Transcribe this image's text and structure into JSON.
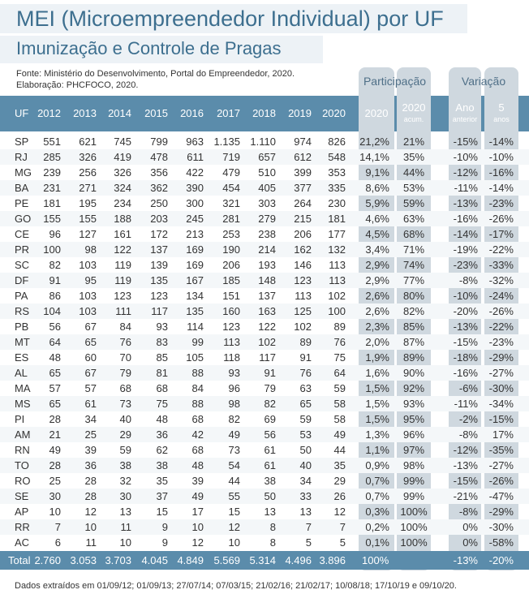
{
  "title": "MEI (Microempreendedor Individual) por UF",
  "subtitle": "Imunização e Controle de Pragas",
  "source_line1": "Fonte: Ministério do Desenvolvimento, Portal do Empreendedor, 2020.",
  "source_line2": "Elaboração: PHCFOCO, 2020.",
  "group_participacao": "Participação",
  "group_variacao": "Variação",
  "headers": {
    "uf": "UF",
    "years": [
      "2012",
      "2013",
      "2014",
      "2015",
      "2016",
      "2017",
      "2018",
      "2019",
      "2020"
    ],
    "part_2020": "2020",
    "part_acum": "2020",
    "part_acum_sub": "acum.",
    "var_ano": "Ano",
    "var_ano_sub": "anterior",
    "var_5": "5",
    "var_5_sub": "anos"
  },
  "rows": [
    {
      "uf": "SP",
      "v": [
        "551",
        "621",
        "745",
        "799",
        "963",
        "1.135",
        "1.110",
        "974",
        "826"
      ],
      "p": "21,2%",
      "a": "21%",
      "ano": "-15%",
      "c": "-14%"
    },
    {
      "uf": "RJ",
      "v": [
        "285",
        "326",
        "419",
        "478",
        "611",
        "719",
        "657",
        "612",
        "548"
      ],
      "p": "14,1%",
      "a": "35%",
      "ano": "-10%",
      "c": "-10%"
    },
    {
      "uf": "MG",
      "v": [
        "239",
        "256",
        "326",
        "356",
        "422",
        "479",
        "510",
        "399",
        "353"
      ],
      "p": "9,1%",
      "a": "44%",
      "ano": "-12%",
      "c": "-16%"
    },
    {
      "uf": "BA",
      "v": [
        "231",
        "271",
        "324",
        "362",
        "390",
        "454",
        "405",
        "377",
        "335"
      ],
      "p": "8,6%",
      "a": "53%",
      "ano": "-11%",
      "c": "-14%"
    },
    {
      "uf": "PE",
      "v": [
        "181",
        "195",
        "234",
        "250",
        "300",
        "321",
        "303",
        "264",
        "230"
      ],
      "p": "5,9%",
      "a": "59%",
      "ano": "-13%",
      "c": "-23%"
    },
    {
      "uf": "GO",
      "v": [
        "155",
        "155",
        "188",
        "203",
        "245",
        "281",
        "279",
        "215",
        "181"
      ],
      "p": "4,6%",
      "a": "63%",
      "ano": "-16%",
      "c": "-26%"
    },
    {
      "uf": "CE",
      "v": [
        "96",
        "127",
        "161",
        "172",
        "213",
        "253",
        "238",
        "206",
        "177"
      ],
      "p": "4,5%",
      "a": "68%",
      "ano": "-14%",
      "c": "-17%"
    },
    {
      "uf": "PR",
      "v": [
        "100",
        "98",
        "122",
        "137",
        "169",
        "190",
        "214",
        "162",
        "132"
      ],
      "p": "3,4%",
      "a": "71%",
      "ano": "-19%",
      "c": "-22%"
    },
    {
      "uf": "SC",
      "v": [
        "82",
        "103",
        "119",
        "139",
        "169",
        "206",
        "193",
        "146",
        "113"
      ],
      "p": "2,9%",
      "a": "74%",
      "ano": "-23%",
      "c": "-33%"
    },
    {
      "uf": "DF",
      "v": [
        "91",
        "95",
        "119",
        "135",
        "167",
        "185",
        "148",
        "123",
        "113"
      ],
      "p": "2,9%",
      "a": "77%",
      "ano": "-8%",
      "c": "-32%"
    },
    {
      "uf": "PA",
      "v": [
        "86",
        "103",
        "123",
        "123",
        "134",
        "151",
        "137",
        "113",
        "102"
      ],
      "p": "2,6%",
      "a": "80%",
      "ano": "-10%",
      "c": "-24%"
    },
    {
      "uf": "RS",
      "v": [
        "104",
        "103",
        "111",
        "117",
        "135",
        "160",
        "163",
        "125",
        "100"
      ],
      "p": "2,6%",
      "a": "82%",
      "ano": "-20%",
      "c": "-26%"
    },
    {
      "uf": "PB",
      "v": [
        "56",
        "67",
        "84",
        "93",
        "114",
        "123",
        "122",
        "102",
        "89"
      ],
      "p": "2,3%",
      "a": "85%",
      "ano": "-13%",
      "c": "-22%"
    },
    {
      "uf": "MT",
      "v": [
        "64",
        "65",
        "76",
        "83",
        "99",
        "113",
        "102",
        "89",
        "76"
      ],
      "p": "2,0%",
      "a": "87%",
      "ano": "-15%",
      "c": "-23%"
    },
    {
      "uf": "ES",
      "v": [
        "48",
        "60",
        "70",
        "85",
        "105",
        "118",
        "117",
        "91",
        "75"
      ],
      "p": "1,9%",
      "a": "89%",
      "ano": "-18%",
      "c": "-29%"
    },
    {
      "uf": "AL",
      "v": [
        "65",
        "67",
        "79",
        "81",
        "88",
        "93",
        "91",
        "76",
        "64"
      ],
      "p": "1,6%",
      "a": "90%",
      "ano": "-16%",
      "c": "-27%"
    },
    {
      "uf": "MA",
      "v": [
        "57",
        "57",
        "68",
        "68",
        "84",
        "96",
        "79",
        "63",
        "59"
      ],
      "p": "1,5%",
      "a": "92%",
      "ano": "-6%",
      "c": "-30%"
    },
    {
      "uf": "MS",
      "v": [
        "65",
        "61",
        "73",
        "75",
        "88",
        "98",
        "82",
        "65",
        "58"
      ],
      "p": "1,5%",
      "a": "93%",
      "ano": "-11%",
      "c": "-34%"
    },
    {
      "uf": "PI",
      "v": [
        "28",
        "34",
        "40",
        "48",
        "68",
        "82",
        "69",
        "59",
        "58"
      ],
      "p": "1,5%",
      "a": "95%",
      "ano": "-2%",
      "c": "-15%"
    },
    {
      "uf": "AM",
      "v": [
        "21",
        "25",
        "29",
        "36",
        "42",
        "49",
        "56",
        "53",
        "49"
      ],
      "p": "1,3%",
      "a": "96%",
      "ano": "-8%",
      "c": "17%"
    },
    {
      "uf": "RN",
      "v": [
        "49",
        "39",
        "59",
        "62",
        "68",
        "73",
        "61",
        "50",
        "44"
      ],
      "p": "1,1%",
      "a": "97%",
      "ano": "-12%",
      "c": "-35%"
    },
    {
      "uf": "TO",
      "v": [
        "28",
        "36",
        "38",
        "38",
        "48",
        "54",
        "61",
        "40",
        "35"
      ],
      "p": "0,9%",
      "a": "98%",
      "ano": "-13%",
      "c": "-27%"
    },
    {
      "uf": "RO",
      "v": [
        "25",
        "28",
        "32",
        "35",
        "39",
        "44",
        "38",
        "34",
        "29"
      ],
      "p": "0,7%",
      "a": "99%",
      "ano": "-15%",
      "c": "-26%"
    },
    {
      "uf": "SE",
      "v": [
        "30",
        "28",
        "30",
        "37",
        "49",
        "55",
        "50",
        "33",
        "26"
      ],
      "p": "0,7%",
      "a": "99%",
      "ano": "-21%",
      "c": "-47%"
    },
    {
      "uf": "AP",
      "v": [
        "10",
        "12",
        "13",
        "15",
        "17",
        "15",
        "13",
        "13",
        "12"
      ],
      "p": "0,3%",
      "a": "100%",
      "ano": "-8%",
      "c": "-29%"
    },
    {
      "uf": "RR",
      "v": [
        "7",
        "10",
        "11",
        "9",
        "10",
        "12",
        "8",
        "7",
        "7"
      ],
      "p": "0,2%",
      "a": "100%",
      "ano": "0%",
      "c": "-30%"
    },
    {
      "uf": "AC",
      "v": [
        "6",
        "11",
        "10",
        "9",
        "12",
        "10",
        "8",
        "5",
        "5"
      ],
      "p": "0,1%",
      "a": "100%",
      "ano": "0%",
      "c": "-58%"
    }
  ],
  "total": {
    "label": "Total",
    "v": [
      "2.760",
      "3.053",
      "3.703",
      "4.045",
      "4.849",
      "5.569",
      "5.314",
      "4.496",
      "3.896"
    ],
    "p": "100%",
    "a": "",
    "ano": "-13%",
    "c": "-20%"
  },
  "footnote": "Dados extraídos em 01/09/12; 01/09/13; 27/07/14; 07/03/15; 21/02/16; 21/02/17; 10/08/18; 17/10/19 e 09/10/20."
}
